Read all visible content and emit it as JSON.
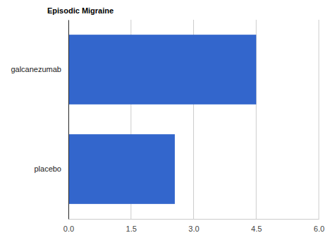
{
  "chart_data": {
    "type": "bar",
    "title": "Episodic Migraine",
    "categories": [
      "galcanezumab",
      "placebo"
    ],
    "values": [
      4.5,
      2.55
    ],
    "color": "#3366cc",
    "orientation": "horizontal",
    "xlim": [
      0,
      6
    ],
    "xticks": [
      {
        "value": 0,
        "label": "0.0"
      },
      1.5,
      {
        "value": 3,
        "label": "3.0"
      },
      4.5,
      {
        "value": 6,
        "label": "6.0"
      }
    ],
    "grid": true
  }
}
